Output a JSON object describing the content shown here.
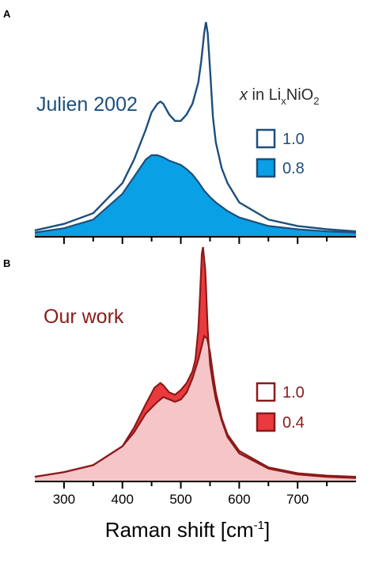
{
  "chart_data": [
    {
      "panel": "A",
      "type": "area",
      "annotation": "Julien 2002",
      "legend_title": {
        "italic": "x",
        "pre": " in Li",
        "sub1": "x",
        "mid": "NiO",
        "sub2": "2"
      },
      "legend_position": "top-right",
      "xlim": [
        250,
        800
      ],
      "ylim": [
        0,
        1.0
      ],
      "x_axis_shown": false,
      "y_axis_shown": false,
      "colors": {
        "line": "#1d4f7d",
        "fill": "#0aa0e6"
      },
      "series": [
        {
          "name": "1.0",
          "style": "outline",
          "x": [
            250,
            300,
            350,
            400,
            420,
            440,
            450,
            460,
            465,
            470,
            480,
            490,
            500,
            510,
            520,
            530,
            535,
            540,
            543,
            546,
            550,
            555,
            560,
            570,
            580,
            600,
            650,
            700,
            750,
            800
          ],
          "y": [
            0.03,
            0.06,
            0.11,
            0.25,
            0.36,
            0.5,
            0.58,
            0.62,
            0.63,
            0.62,
            0.57,
            0.54,
            0.54,
            0.57,
            0.62,
            0.72,
            0.82,
            0.95,
            1.0,
            0.95,
            0.78,
            0.56,
            0.44,
            0.32,
            0.25,
            0.16,
            0.08,
            0.05,
            0.035,
            0.025
          ]
        },
        {
          "name": "0.8",
          "style": "filled",
          "x": [
            250,
            300,
            350,
            400,
            420,
            440,
            450,
            460,
            470,
            480,
            490,
            500,
            510,
            520,
            530,
            540,
            550,
            560,
            580,
            600,
            650,
            700,
            750,
            800
          ],
          "y": [
            0.02,
            0.04,
            0.08,
            0.2,
            0.28,
            0.36,
            0.38,
            0.38,
            0.37,
            0.355,
            0.345,
            0.335,
            0.315,
            0.29,
            0.255,
            0.215,
            0.185,
            0.16,
            0.12,
            0.09,
            0.05,
            0.035,
            0.025,
            0.02
          ]
        }
      ]
    },
    {
      "panel": "B",
      "type": "area",
      "annotation": "Our work",
      "legend_position": "right",
      "xlim": [
        250,
        800
      ],
      "ylim": [
        0,
        1.0
      ],
      "xticks": [
        300,
        400,
        500,
        600,
        700
      ],
      "xlabel": {
        "text": "Raman shift [cm",
        "sup": "-1",
        "end": "]"
      },
      "y_axis_shown": false,
      "colors": {
        "line": "#8b1a1a",
        "fill_light": "#f5c5c7",
        "fill_dark": "#ea3a3e"
      },
      "series": [
        {
          "name": "1.0",
          "style": "outline-light-fill",
          "x": [
            250,
            300,
            350,
            400,
            420,
            440,
            460,
            470,
            480,
            490,
            500,
            510,
            520,
            530,
            535,
            540,
            545,
            550,
            555,
            560,
            570,
            580,
            600,
            650,
            700,
            750,
            800
          ],
          "y": [
            0.02,
            0.04,
            0.07,
            0.15,
            0.21,
            0.29,
            0.34,
            0.36,
            0.35,
            0.34,
            0.35,
            0.38,
            0.44,
            0.52,
            0.57,
            0.62,
            0.61,
            0.55,
            0.46,
            0.38,
            0.27,
            0.2,
            0.13,
            0.06,
            0.035,
            0.025,
            0.02
          ]
        },
        {
          "name": "0.4",
          "style": "filled",
          "x": [
            250,
            300,
            350,
            400,
            420,
            440,
            455,
            465,
            470,
            480,
            490,
            500,
            510,
            520,
            525,
            530,
            533,
            536,
            538,
            542,
            546,
            550,
            555,
            560,
            570,
            580,
            600,
            650,
            700,
            750,
            800
          ],
          "y": [
            0.02,
            0.04,
            0.07,
            0.15,
            0.23,
            0.33,
            0.4,
            0.42,
            0.41,
            0.38,
            0.37,
            0.39,
            0.42,
            0.47,
            0.52,
            0.65,
            0.8,
            0.97,
            1.0,
            0.9,
            0.65,
            0.5,
            0.42,
            0.35,
            0.26,
            0.19,
            0.12,
            0.055,
            0.03,
            0.02,
            0.015
          ]
        }
      ]
    }
  ]
}
